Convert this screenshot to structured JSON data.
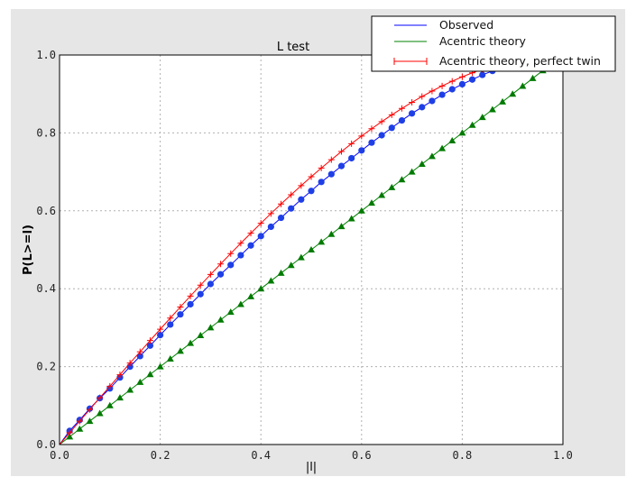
{
  "chart_data": {
    "type": "line",
    "title": "L test",
    "xlabel": "|l|",
    "ylabel": "P(L>=l)",
    "xlim": [
      0,
      1
    ],
    "ylim": [
      0,
      1
    ],
    "xticks": [
      "0.0",
      "0.2",
      "0.4",
      "0.6",
      "0.8",
      "1.0"
    ],
    "yticks": [
      "0.0",
      "0.2",
      "0.4",
      "0.6",
      "0.8",
      "1.0"
    ],
    "grid": true,
    "legend_position": "top-right",
    "x": [
      0,
      0.02,
      0.04,
      0.06,
      0.08,
      0.1,
      0.12,
      0.14,
      0.16,
      0.18,
      0.2,
      0.22,
      0.24,
      0.26,
      0.28,
      0.3,
      0.32,
      0.34,
      0.36,
      0.38,
      0.4,
      0.42,
      0.44,
      0.46,
      0.48,
      0.5,
      0.52,
      0.54,
      0.56,
      0.58,
      0.6,
      0.62,
      0.64,
      0.66,
      0.68,
      0.7,
      0.72,
      0.74,
      0.76,
      0.78,
      0.8,
      0.82,
      0.84,
      0.86,
      0.88,
      0.9,
      0.92,
      0.94,
      0.96,
      0.98,
      1.0
    ],
    "series": [
      {
        "name": "Observed",
        "color": "#0000ff",
        "marker": "circle",
        "marker_color": "#1f3fe6",
        "values": [
          0,
          0.035,
          0.063,
          0.092,
          0.119,
          0.144,
          0.172,
          0.2,
          0.227,
          0.254,
          0.281,
          0.308,
          0.334,
          0.36,
          0.386,
          0.412,
          0.437,
          0.461,
          0.486,
          0.511,
          0.535,
          0.559,
          0.582,
          0.606,
          0.629,
          0.651,
          0.674,
          0.694,
          0.715,
          0.735,
          0.755,
          0.775,
          0.794,
          0.813,
          0.832,
          0.85,
          0.866,
          0.882,
          0.898,
          0.912,
          0.925,
          0.937,
          0.949,
          0.959,
          0.969,
          0.978,
          0.985,
          0.991,
          0.996,
          0.999,
          1.0
        ]
      },
      {
        "name": "Acentric theory",
        "color": "#008000",
        "marker": "triangle",
        "marker_color": "#007a00",
        "values": [
          0,
          0.02,
          0.04,
          0.06,
          0.08,
          0.1,
          0.12,
          0.14,
          0.16,
          0.18,
          0.2,
          0.22,
          0.24,
          0.26,
          0.28,
          0.3,
          0.32,
          0.34,
          0.36,
          0.38,
          0.4,
          0.42,
          0.44,
          0.46,
          0.48,
          0.5,
          0.52,
          0.54,
          0.56,
          0.58,
          0.6,
          0.62,
          0.64,
          0.66,
          0.68,
          0.7,
          0.72,
          0.74,
          0.76,
          0.78,
          0.8,
          0.82,
          0.84,
          0.86,
          0.88,
          0.9,
          0.92,
          0.94,
          0.96,
          0.98,
          1.0
        ]
      },
      {
        "name": "Acentric theory, perfect twin",
        "color": "#ff0000",
        "marker": "plus",
        "marker_color": "#ff0000",
        "values": [
          0,
          0.03,
          0.06,
          0.09,
          0.12,
          0.1495,
          0.1791,
          0.2093,
          0.238,
          0.2671,
          0.296,
          0.3247,
          0.3531,
          0.3812,
          0.409,
          0.4365,
          0.4636,
          0.4903,
          0.5167,
          0.5426,
          0.568,
          0.593,
          0.6174,
          0.6413,
          0.6647,
          0.6875,
          0.7097,
          0.7313,
          0.7522,
          0.7724,
          0.792,
          0.8108,
          0.8289,
          0.8463,
          0.8628,
          0.8785,
          0.8934,
          0.9074,
          0.9205,
          0.9327,
          0.944,
          0.9543,
          0.9636,
          0.972,
          0.9793,
          0.9855,
          0.9907,
          0.9947,
          0.9976,
          0.9994,
          1.0
        ]
      }
    ]
  },
  "colors": {
    "figure_background": "#e6e6e6",
    "axes_background": "#ffffff",
    "grid": "#b0b0b0"
  }
}
